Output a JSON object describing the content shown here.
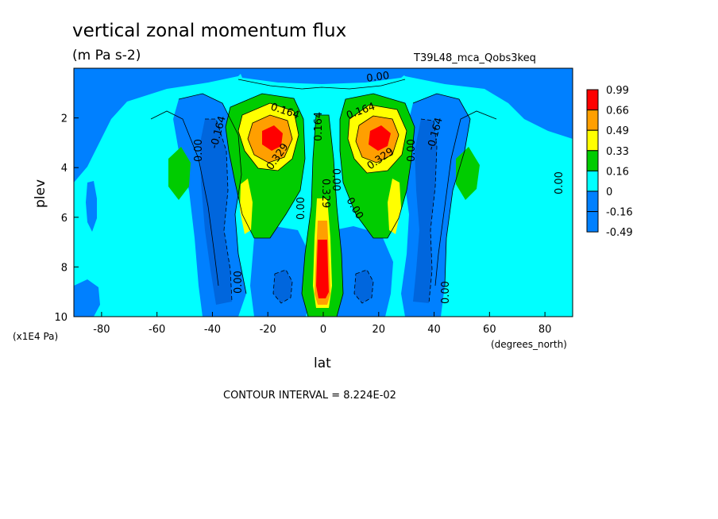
{
  "chart_data": {
    "type": "heatmap",
    "title": "vertical zonal momentum flux",
    "units": "(m Pa s-2)",
    "run_label": "T39L48_mca_Qobs3keq",
    "xlabel": "lat",
    "x_units": "(degrees_north)",
    "ylabel": "plev",
    "y_units": "(x1E4 Pa)",
    "xlim": [
      -90,
      90
    ],
    "ylim": [
      10,
      0
    ],
    "x_ticks": [
      "-80",
      "-60",
      "-40",
      "-20",
      "0",
      "20",
      "40",
      "60",
      "80"
    ],
    "y_ticks": [
      "2",
      "4",
      "6",
      "8",
      "10"
    ],
    "colorbar": {
      "labels": [
        "0.99",
        "0.66",
        "0.49",
        "0.33",
        "0.16",
        "0",
        "-0.16",
        "-0.49"
      ],
      "colors": [
        "#ff0000",
        "#ff9f00",
        "#ffff00",
        "#00cc00",
        "#00ffff",
        "#0080ff",
        "#0080ff"
      ]
    },
    "field_colors": {
      "neg_strong": "#0066dd",
      "neg": "#0080ff",
      "zero": "#00ffff",
      "pos1": "#00cc00",
      "pos2": "#ffff00",
      "pos3": "#ff9f00",
      "pos4": "#ff0000"
    },
    "contour_labels": [
      "0.00",
      "0.164",
      "0.164",
      "0.164",
      "0.329",
      "0.329",
      "0.00",
      "-0.164",
      "-0.164",
      "0.00",
      "0.00",
      "0.00",
      "0.00",
      "0.329",
      "0.00",
      "0.00",
      "0.00"
    ],
    "contour_interval_text": "CONTOUR INTERVAL = 8.224E-02"
  }
}
